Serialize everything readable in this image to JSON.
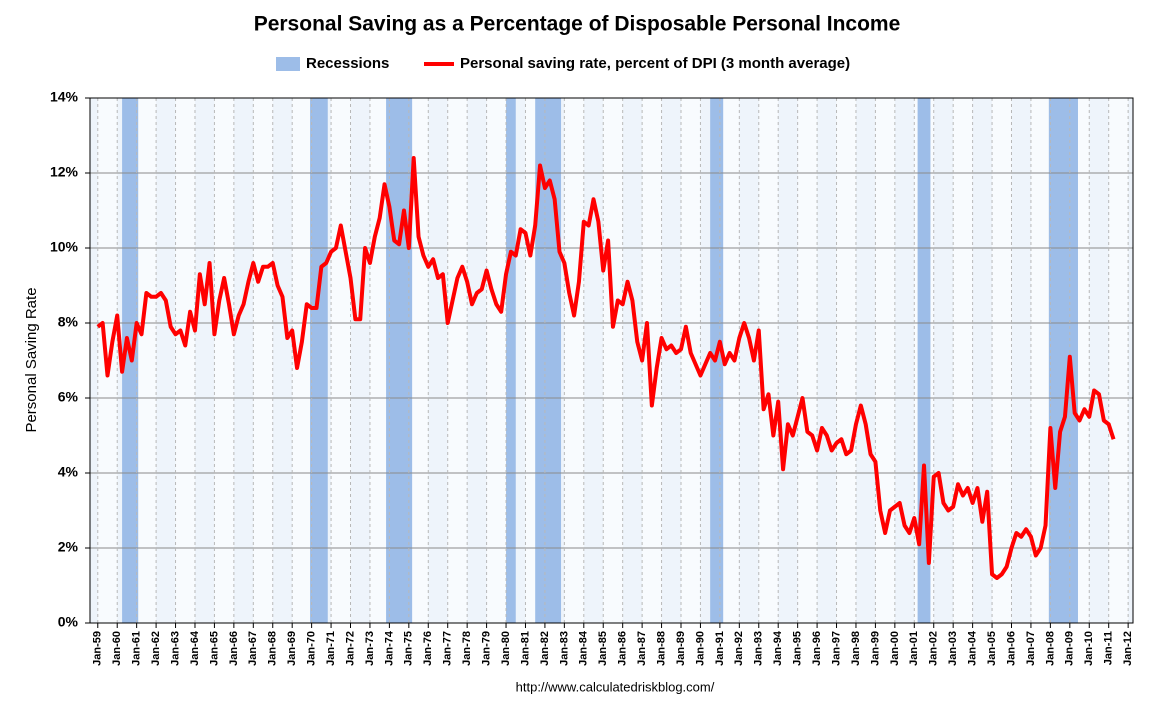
{
  "chart_data": {
    "type": "line",
    "title": "Personal Saving as a Percentage of Disposable Personal Income",
    "y_label": "Personal Saving Rate",
    "source": "http://www.calculatedriskblog.com/",
    "recessions": {
      "name": "Recessions",
      "color": "#9dbde8",
      "periods": [
        [
          1960.25,
          1961.08
        ],
        [
          1969.92,
          1970.83
        ],
        [
          1973.83,
          1975.17
        ],
        [
          1980.0,
          1980.5
        ],
        [
          1981.5,
          1982.83
        ],
        [
          1990.5,
          1991.17
        ],
        [
          2001.17,
          2001.83
        ],
        [
          2007.92,
          2009.42
        ]
      ]
    },
    "x": [
      1959,
      1959.25,
      1959.5,
      1959.75,
      1960,
      1960.25,
      1960.5,
      1960.75,
      1961,
      1961.25,
      1961.5,
      1961.75,
      1962,
      1962.25,
      1962.5,
      1962.75,
      1963,
      1963.25,
      1963.5,
      1963.75,
      1964,
      1964.25,
      1964.5,
      1964.75,
      1965,
      1965.25,
      1965.5,
      1965.75,
      1966,
      1966.25,
      1966.5,
      1966.75,
      1967,
      1967.25,
      1967.5,
      1967.75,
      1968,
      1968.25,
      1968.5,
      1968.75,
      1969,
      1969.25,
      1969.5,
      1969.75,
      1970,
      1970.25,
      1970.5,
      1970.75,
      1971,
      1971.25,
      1971.5,
      1971.75,
      1972,
      1972.25,
      1972.5,
      1972.75,
      1973,
      1973.25,
      1973.5,
      1973.75,
      1974,
      1974.25,
      1974.5,
      1974.75,
      1975,
      1975.25,
      1975.5,
      1975.75,
      1976,
      1976.25,
      1976.5,
      1976.75,
      1977,
      1977.25,
      1977.5,
      1977.75,
      1978,
      1978.25,
      1978.5,
      1978.75,
      1979,
      1979.25,
      1979.5,
      1979.75,
      1980,
      1980.25,
      1980.5,
      1980.75,
      1981,
      1981.25,
      1981.5,
      1981.75,
      1982,
      1982.25,
      1982.5,
      1982.75,
      1983,
      1983.25,
      1983.5,
      1983.75,
      1984,
      1984.25,
      1984.5,
      1984.75,
      1985,
      1985.25,
      1985.5,
      1985.75,
      1986,
      1986.25,
      1986.5,
      1986.75,
      1987,
      1987.25,
      1987.5,
      1987.75,
      1988,
      1988.25,
      1988.5,
      1988.75,
      1989,
      1989.25,
      1989.5,
      1989.75,
      1990,
      1990.25,
      1990.5,
      1990.75,
      1991,
      1991.25,
      1991.5,
      1991.75,
      1992,
      1992.25,
      1992.5,
      1992.75,
      1993,
      1993.25,
      1993.5,
      1993.75,
      1994,
      1994.25,
      1994.5,
      1994.75,
      1995,
      1995.25,
      1995.5,
      1995.75,
      1996,
      1996.25,
      1996.5,
      1996.75,
      1997,
      1997.25,
      1997.5,
      1997.75,
      1998,
      1998.25,
      1998.5,
      1998.75,
      1999,
      1999.25,
      1999.5,
      1999.75,
      2000,
      2000.25,
      2000.5,
      2000.75,
      2001,
      2001.25,
      2001.5,
      2001.75,
      2002,
      2002.25,
      2002.5,
      2002.75,
      2003,
      2003.25,
      2003.5,
      2003.75,
      2004,
      2004.25,
      2004.5,
      2004.75,
      2005,
      2005.25,
      2005.5,
      2005.75,
      2006,
      2006.25,
      2006.5,
      2006.75,
      2007,
      2007.25,
      2007.5,
      2007.75,
      2008,
      2008.25,
      2008.5,
      2008.75,
      2009,
      2009.25,
      2009.5,
      2009.75,
      2010,
      2010.25,
      2010.5,
      2010.75,
      2011,
      2011.25
    ],
    "series": [
      {
        "name": "Personal saving rate, percent of DPI (3 month average)",
        "color": "#ff0000",
        "values": [
          7.9,
          8.0,
          6.6,
          7.5,
          8.2,
          6.7,
          7.6,
          7.0,
          8.0,
          7.7,
          8.8,
          8.7,
          8.7,
          8.8,
          8.6,
          7.9,
          7.7,
          7.8,
          7.4,
          8.3,
          7.8,
          9.3,
          8.5,
          9.6,
          7.7,
          8.6,
          9.2,
          8.5,
          7.7,
          8.2,
          8.5,
          9.1,
          9.6,
          9.1,
          9.5,
          9.5,
          9.6,
          9.0,
          8.7,
          7.6,
          7.8,
          6.8,
          7.5,
          8.5,
          8.4,
          8.4,
          9.5,
          9.6,
          9.9,
          10.0,
          10.6,
          9.9,
          9.2,
          8.1,
          8.1,
          10.0,
          9.6,
          10.3,
          10.8,
          11.7,
          11.1,
          10.2,
          10.1,
          11.0,
          10.0,
          12.4,
          10.3,
          9.8,
          9.5,
          9.7,
          9.2,
          9.3,
          8.0,
          8.6,
          9.2,
          9.5,
          9.1,
          8.5,
          8.8,
          8.9,
          9.4,
          8.9,
          8.5,
          8.3,
          9.3,
          9.9,
          9.8,
          10.5,
          10.4,
          9.8,
          10.6,
          12.2,
          11.6,
          11.8,
          11.3,
          9.9,
          9.6,
          8.8,
          8.2,
          9.1,
          10.7,
          10.6,
          11.3,
          10.7,
          9.4,
          10.2,
          7.9,
          8.6,
          8.5,
          9.1,
          8.6,
          7.5,
          7.0,
          8.0,
          5.8,
          6.8,
          7.6,
          7.3,
          7.4,
          7.2,
          7.3,
          7.9,
          7.2,
          6.9,
          6.6,
          6.9,
          7.2,
          7.0,
          7.5,
          6.9,
          7.2,
          7.0,
          7.6,
          8.0,
          7.6,
          7.0,
          7.8,
          5.7,
          6.1,
          5.0,
          5.9,
          4.1,
          5.3,
          5.0,
          5.5,
          6.0,
          5.1,
          5.0,
          4.6,
          5.2,
          5.0,
          4.6,
          4.8,
          4.9,
          4.5,
          4.6,
          5.3,
          5.8,
          5.3,
          4.5,
          4.3,
          3.0,
          2.4,
          3.0,
          3.1,
          3.2,
          2.6,
          2.4,
          2.8,
          2.1,
          4.2,
          1.6,
          3.9,
          4.0,
          3.2,
          3.0,
          3.1,
          3.7,
          3.4,
          3.6,
          3.2,
          3.6,
          2.7,
          3.5,
          1.3,
          1.2,
          1.3,
          1.5,
          2.0,
          2.4,
          2.3,
          2.5,
          2.3,
          1.8,
          2.0,
          2.6,
          5.2,
          3.6,
          5.1,
          5.5,
          7.1,
          5.6,
          5.4,
          5.7,
          5.5,
          6.2,
          6.1,
          5.4,
          5.3,
          4.9
        ]
      }
    ],
    "xlim": [
      1958.6,
      2012.25
    ],
    "ylim": [
      0,
      14
    ],
    "yticks": [
      {
        "value": 0,
        "label": "0%"
      },
      {
        "value": 2,
        "label": "2%"
      },
      {
        "value": 4,
        "label": "4%"
      },
      {
        "value": 6,
        "label": "6%"
      },
      {
        "value": 8,
        "label": "8%"
      },
      {
        "value": 10,
        "label": "10%"
      },
      {
        "value": 12,
        "label": "12%"
      },
      {
        "value": 14,
        "label": "14%"
      }
    ],
    "xticks": [
      {
        "value": 1959,
        "label": "Jan-59"
      },
      {
        "value": 1960,
        "label": "Jan-60"
      },
      {
        "value": 1961,
        "label": "Jan-61"
      },
      {
        "value": 1962,
        "label": "Jan-62"
      },
      {
        "value": 1963,
        "label": "Jan-63"
      },
      {
        "value": 1964,
        "label": "Jan-64"
      },
      {
        "value": 1965,
        "label": "Jan-65"
      },
      {
        "value": 1966,
        "label": "Jan-66"
      },
      {
        "value": 1967,
        "label": "Jan-67"
      },
      {
        "value": 1968,
        "label": "Jan-68"
      },
      {
        "value": 1969,
        "label": "Jan-69"
      },
      {
        "value": 1970,
        "label": "Jan-70"
      },
      {
        "value": 1971,
        "label": "Jan-71"
      },
      {
        "value": 1972,
        "label": "Jan-72"
      },
      {
        "value": 1973,
        "label": "Jan-73"
      },
      {
        "value": 1974,
        "label": "Jan-74"
      },
      {
        "value": 1975,
        "label": "Jan-75"
      },
      {
        "value": 1976,
        "label": "Jan-76"
      },
      {
        "value": 1977,
        "label": "Jan-77"
      },
      {
        "value": 1978,
        "label": "Jan-78"
      },
      {
        "value": 1979,
        "label": "Jan-79"
      },
      {
        "value": 1980,
        "label": "Jan-80"
      },
      {
        "value": 1981,
        "label": "Jan-81"
      },
      {
        "value": 1982,
        "label": "Jan-82"
      },
      {
        "value": 1983,
        "label": "Jan-83"
      },
      {
        "value": 1984,
        "label": "Jan-84"
      },
      {
        "value": 1985,
        "label": "Jan-85"
      },
      {
        "value": 1986,
        "label": "Jan-86"
      },
      {
        "value": 1987,
        "label": "Jan-87"
      },
      {
        "value": 1988,
        "label": "Jan-88"
      },
      {
        "value": 1989,
        "label": "Jan-89"
      },
      {
        "value": 1990,
        "label": "Jan-90"
      },
      {
        "value": 1991,
        "label": "Jan-91"
      },
      {
        "value": 1992,
        "label": "Jan-92"
      },
      {
        "value": 1993,
        "label": "Jan-93"
      },
      {
        "value": 1994,
        "label": "Jan-94"
      },
      {
        "value": 1995,
        "label": "Jan-95"
      },
      {
        "value": 1996,
        "label": "Jan-96"
      },
      {
        "value": 1997,
        "label": "Jan-97"
      },
      {
        "value": 1998,
        "label": "Jan-98"
      },
      {
        "value": 1999,
        "label": "Jan-99"
      },
      {
        "value": 2000,
        "label": "Jan-00"
      },
      {
        "value": 2001,
        "label": "Jan-01"
      },
      {
        "value": 2002,
        "label": "Jan-02"
      },
      {
        "value": 2003,
        "label": "Jan-03"
      },
      {
        "value": 2004,
        "label": "Jan-04"
      },
      {
        "value": 2005,
        "label": "Jan-05"
      },
      {
        "value": 2006,
        "label": "Jan-06"
      },
      {
        "value": 2007,
        "label": "Jan-07"
      },
      {
        "value": 2008,
        "label": "Jan-08"
      },
      {
        "value": 2009,
        "label": "Jan-09"
      },
      {
        "value": 2010,
        "label": "Jan-10"
      },
      {
        "value": 2011,
        "label": "Jan-11"
      },
      {
        "value": 2012,
        "label": "Jan-12"
      }
    ],
    "grid": true
  }
}
